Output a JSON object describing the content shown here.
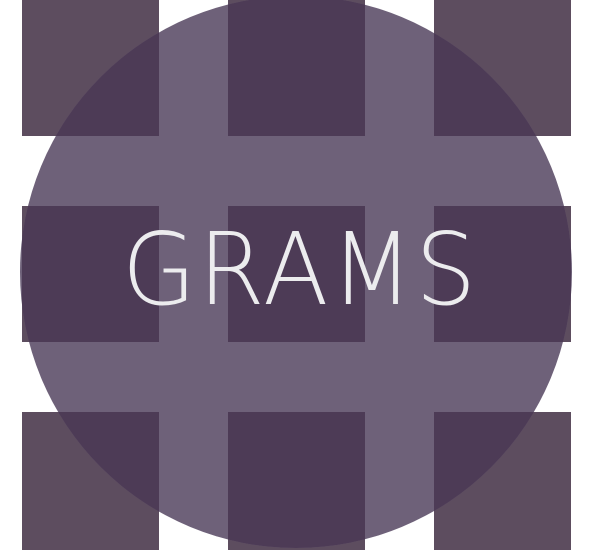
{
  "logo": {
    "text": "GRAMS"
  },
  "colors": {
    "background": "#ffffff",
    "tile": "#5d4d5f",
    "tile_under_circle": "#4d3b56",
    "circle": "#6e6179",
    "text": "#ececee"
  }
}
